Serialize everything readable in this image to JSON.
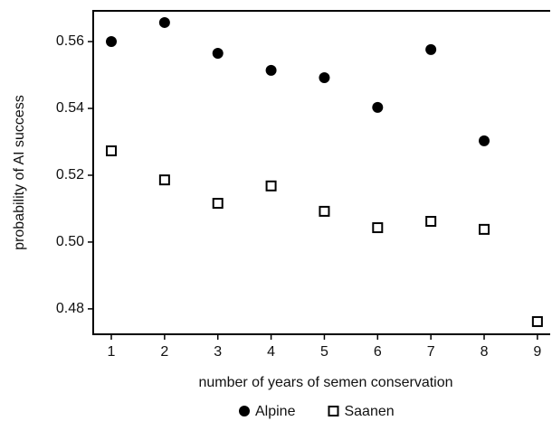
{
  "chart_data": {
    "type": "scatter",
    "xlabel": "number of years of semen conservation",
    "ylabel": "probability of AI success",
    "x": [
      1,
      2,
      3,
      4,
      5,
      6,
      7,
      8,
      9
    ],
    "series": [
      {
        "name": "Alpine",
        "color": "#000000",
        "marker": "filled-circle",
        "values": [
          0.56,
          0.5657,
          0.5565,
          0.5514,
          0.5492,
          0.5403,
          0.5576,
          0.5303,
          null
        ]
      },
      {
        "name": "Saanen",
        "color": "#000000",
        "marker": "open-square",
        "values": [
          0.5273,
          0.5186,
          0.5116,
          0.5168,
          0.5092,
          0.5043,
          0.5062,
          0.5038,
          0.4762
        ]
      }
    ],
    "xlim": [
      0.66,
      9.24
    ],
    "xticks": [
      1,
      2,
      3,
      4,
      5,
      6,
      7,
      8,
      9
    ],
    "ylim": [
      0.4724,
      0.5692
    ],
    "yticks": [
      0.48,
      {
        "value": 0.5,
        "label": "0.50"
      },
      0.52,
      0.54,
      0.56
    ],
    "legend": "bottom"
  }
}
